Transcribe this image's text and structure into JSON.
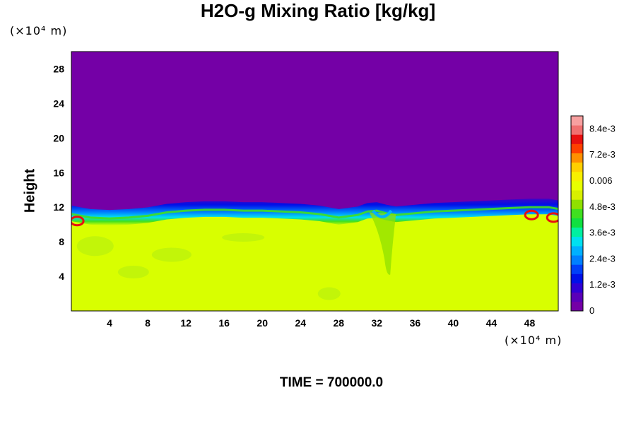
{
  "chart_data": {
    "type": "heatmap",
    "title": "H2O-g Mixing Ratio [kg/kg]",
    "ylabel": "Height",
    "xlabel": "",
    "y_unit": "(×10⁴ m)",
    "x_unit": "(×10⁴ m)",
    "footer": "TIME = 700000.0",
    "xlim": [
      0,
      51
    ],
    "ylim": [
      0,
      30
    ],
    "x_ticks": [
      4,
      8,
      12,
      16,
      20,
      24,
      28,
      32,
      36,
      40,
      44,
      48
    ],
    "y_ticks": [
      4,
      8,
      12,
      16,
      20,
      24,
      28
    ],
    "x_tick_labels": [
      "4",
      "8",
      "12",
      "16",
      "20",
      "24",
      "28",
      "32",
      "36",
      "40",
      "44",
      "48"
    ],
    "y_tick_labels": [
      "4",
      "8",
      "12",
      "16",
      "20",
      "24",
      "28"
    ],
    "colorbar": {
      "min": 0,
      "max": 0.009,
      "labels": [
        {
          "value": 0,
          "text": "0"
        },
        {
          "value": 0.0012,
          "text": "1.2e-3"
        },
        {
          "value": 0.0024,
          "text": "2.4e-3"
        },
        {
          "value": 0.0036,
          "text": "3.6e-3"
        },
        {
          "value": 0.0048,
          "text": "4.8e-3"
        },
        {
          "value": 0.006,
          "text": "0.006"
        },
        {
          "value": 0.0072,
          "text": "7.2e-3"
        },
        {
          "value": 0.0084,
          "text": "8.4e-3"
        }
      ],
      "colors": [
        "#7400a6",
        "#5a00b8",
        "#3000d4",
        "#0010e8",
        "#0040f8",
        "#0080ff",
        "#00b0ff",
        "#00e0f0",
        "#00f0a0",
        "#10e040",
        "#40e020",
        "#90e000",
        "#d8f000",
        "#e8ff00",
        "#f8f000",
        "#ffd000",
        "#ff9000",
        "#ff4000",
        "#e81010",
        "#f07070",
        "#f8a0a0"
      ]
    },
    "colors": {
      "upper_region": "#7400a6",
      "lower_region": "#d8ff00",
      "interface_dark": "#0010e8",
      "interface_mid": "#00b0ff",
      "interface_green": "#40e020",
      "hot_spots": "#e81010"
    },
    "interface_profile": {
      "x": [
        0,
        2,
        4,
        6,
        8,
        10,
        12,
        14,
        16,
        18,
        20,
        22,
        24,
        26,
        28,
        30,
        31,
        32,
        33,
        34,
        36,
        38,
        40,
        42,
        44,
        46,
        48,
        50,
        51
      ],
      "height": [
        11.2,
        10.8,
        10.7,
        10.8,
        11.0,
        11.4,
        11.6,
        11.7,
        11.7,
        11.6,
        11.6,
        11.5,
        11.4,
        11.2,
        10.8,
        11.1,
        11.5,
        11.6,
        11.3,
        11.1,
        11.3,
        11.5,
        11.6,
        11.7,
        11.8,
        11.9,
        12.0,
        12.0,
        11.8
      ]
    },
    "high_values": [
      {
        "x": 0.6,
        "height": 10.4,
        "value": 0.0088
      },
      {
        "x": 48.2,
        "height": 11.1,
        "value": 0.0085
      },
      {
        "x": 50.5,
        "height": 10.8,
        "value": 0.0088
      }
    ]
  }
}
